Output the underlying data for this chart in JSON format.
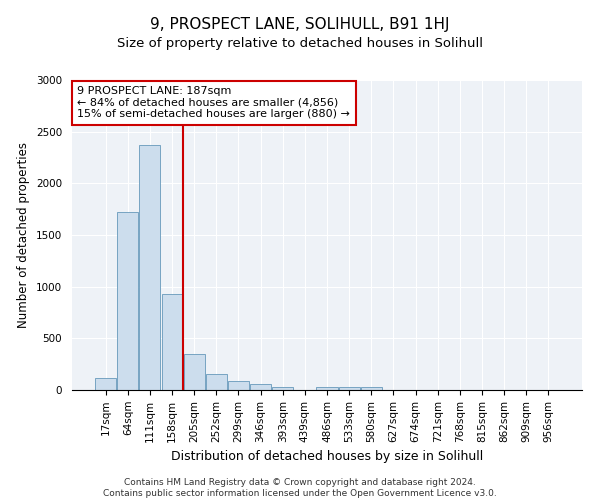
{
  "title": "9, PROSPECT LANE, SOLIHULL, B91 1HJ",
  "subtitle": "Size of property relative to detached houses in Solihull",
  "xlabel": "Distribution of detached houses by size in Solihull",
  "ylabel": "Number of detached properties",
  "categories": [
    "17sqm",
    "64sqm",
    "111sqm",
    "158sqm",
    "205sqm",
    "252sqm",
    "299sqm",
    "346sqm",
    "393sqm",
    "439sqm",
    "486sqm",
    "533sqm",
    "580sqm",
    "627sqm",
    "674sqm",
    "721sqm",
    "768sqm",
    "815sqm",
    "862sqm",
    "909sqm",
    "956sqm"
  ],
  "values": [
    120,
    1725,
    2375,
    930,
    345,
    155,
    85,
    55,
    30,
    0,
    30,
    30,
    30,
    0,
    0,
    0,
    0,
    0,
    0,
    0,
    0
  ],
  "bar_color": "#ccdded",
  "bar_edge_color": "#6699bb",
  "property_line_color": "#cc0000",
  "annotation_text": "9 PROSPECT LANE: 187sqm\n← 84% of detached houses are smaller (4,856)\n15% of semi-detached houses are larger (880) →",
  "annotation_box_facecolor": "#ffffff",
  "annotation_box_edgecolor": "#cc0000",
  "ylim": [
    0,
    3000
  ],
  "yticks": [
    0,
    500,
    1000,
    1500,
    2000,
    2500,
    3000
  ],
  "background_color": "#eef2f7",
  "footer_line1": "Contains HM Land Registry data © Crown copyright and database right 2024.",
  "footer_line2": "Contains public sector information licensed under the Open Government Licence v3.0.",
  "title_fontsize": 11,
  "subtitle_fontsize": 9.5,
  "xlabel_fontsize": 9,
  "ylabel_fontsize": 8.5,
  "tick_fontsize": 7.5,
  "annotation_fontsize": 8,
  "footer_fontsize": 6.5
}
